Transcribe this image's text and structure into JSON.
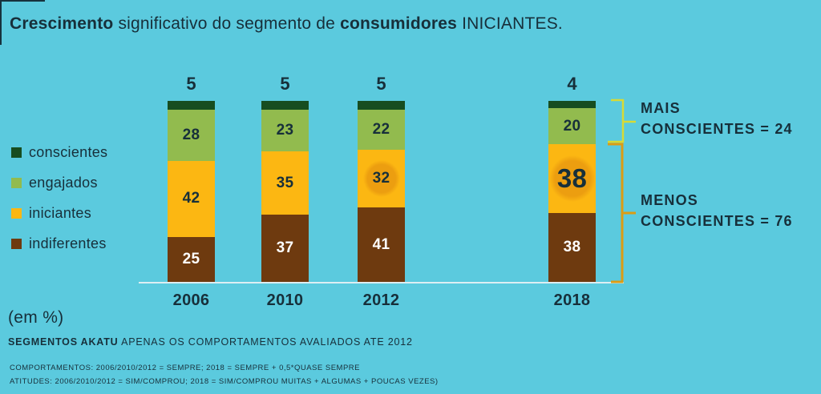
{
  "title": {
    "part1_bold": "Crescimento",
    "part2": " significativo do segmento de ",
    "part3_bold": "consumidores",
    "part4": " INICIANTES."
  },
  "legend": {
    "items": [
      {
        "label": "conscientes",
        "color": "#174d20"
      },
      {
        "label": "engajados",
        "color": "#92bb4e"
      },
      {
        "label": "iniciantes",
        "color": "#fcb712"
      },
      {
        "label": "indiferentes",
        "color": "#6e3a0f"
      }
    ]
  },
  "chart_data": {
    "type": "bar",
    "stacked": true,
    "unit": "%",
    "title": "Crescimento significativo do segmento de consumidores INICIANTES.",
    "categories": [
      "2006",
      "2010",
      "2012",
      "2018"
    ],
    "series": [
      {
        "name": "conscientes",
        "color": "#174d20",
        "values": [
          5,
          5,
          5,
          4
        ],
        "label_position": "above",
        "label_color": "#172f3a"
      },
      {
        "name": "engajados",
        "color": "#92bb4e",
        "values": [
          28,
          23,
          22,
          20
        ],
        "label_color": "#172f3a"
      },
      {
        "name": "iniciantes",
        "color": "#fcb712",
        "values": [
          42,
          35,
          32,
          38
        ],
        "label_color": "#172f3a"
      },
      {
        "name": "indiferentes",
        "color": "#6e3a0f",
        "values": [
          25,
          37,
          41,
          38
        ],
        "label_color": "#ffffff"
      }
    ],
    "highlights": [
      {
        "category": "2012",
        "series": "iniciantes",
        "style": "medium"
      },
      {
        "category": "2018",
        "series": "iniciantes",
        "style": "large"
      }
    ],
    "ylim": [
      0,
      100
    ],
    "grid": false,
    "legend_position": "left",
    "groupings": [
      {
        "label": "MAIS CONSCIENTES",
        "total": 24,
        "series": [
          "conscientes",
          "engajados"
        ]
      },
      {
        "label": "MENOS CONSCIENTES",
        "total": 76,
        "series": [
          "iniciantes",
          "indiferentes"
        ]
      }
    ]
  },
  "annotations": {
    "mais_line1": "MAIS",
    "mais_line2": "CONSCIENTES = 24",
    "menos_line1": "MENOS",
    "menos_line2": "CONSCIENTES = 76"
  },
  "footer": {
    "unit_note": "(em %)",
    "source_bold": "SEGMENTOS AKATU",
    "source_rest": " APENAS OS COMPORTAMENTOS AVALIADOS ATE 2012",
    "fine_print_1": "COMPORTAMENTOS: 2006/2010/2012 = SEMPRE; 2018 = SEMPRE + 0,5*QUASE SEMPRE",
    "fine_print_2": "ATITUDES: 2006/2010/2012 = SIM/COMPROU; 2018 = SIM/COMPROU MUITAS + ALGUMAS + POUCAS VEZES)"
  },
  "colors": {
    "background": "#5bcade",
    "text": "#172f3a",
    "baseline": "#ddeef3",
    "bracket_top": "#d8da35",
    "bracket_bottom": "#dc9c14",
    "highlight_circle": "#ec9e10"
  }
}
